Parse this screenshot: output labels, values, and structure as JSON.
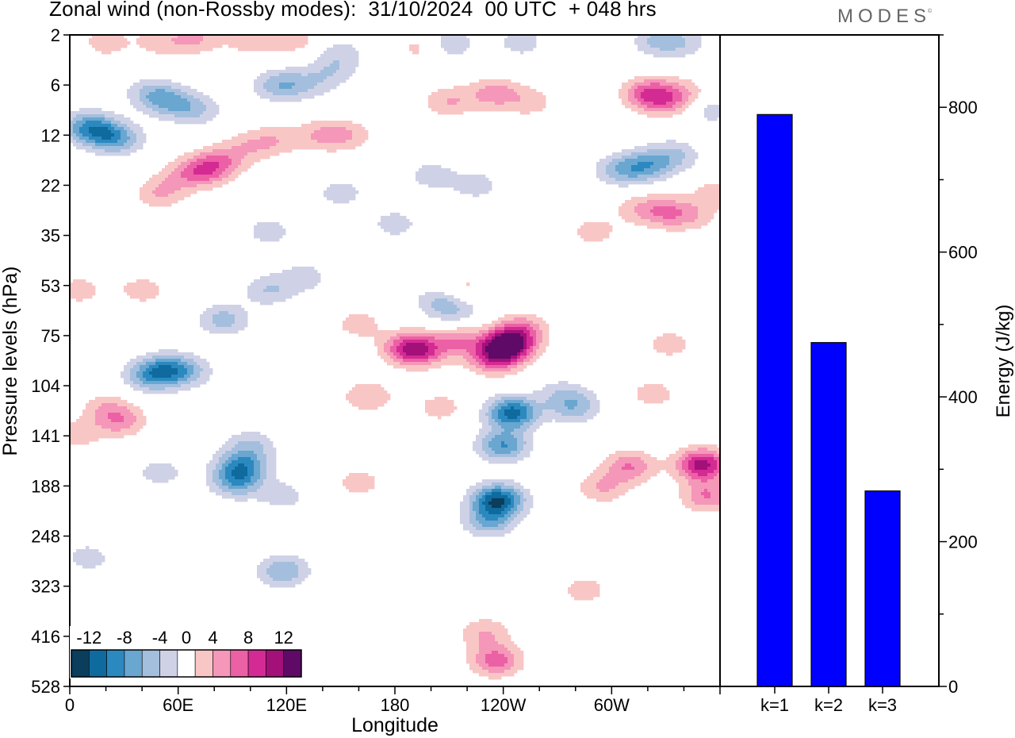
{
  "title": "Zonal wind (non-Rossby modes):  31/10/2024  00 UTC  + 048 hrs",
  "brand": "MODES",
  "brand_mark": "©",
  "colors": {
    "negative": [
      "#0b3d5c",
      "#0f6a9e",
      "#2b89c0",
      "#69a6d0",
      "#a4bfde",
      "#cfd2e6"
    ],
    "zero": "#ffffff",
    "positive": [
      "#f9c6c6",
      "#f597b8",
      "#ec60a6",
      "#d42a93",
      "#a3107a",
      "#5e0a66"
    ],
    "bar": "#0000ff"
  },
  "chart_data": [
    {
      "type": "heatmap",
      "title": "Zonal wind (non-Rossby modes):  31/10/2024  00 UTC  + 048 hrs",
      "xlabel": "Longitude",
      "ylabel": "Pressure levels (hPa)",
      "x_ticks": [
        "0",
        "60E",
        "120E",
        "180",
        "120W",
        "60W"
      ],
      "y_ticks": [
        "2",
        "6",
        "12",
        "22",
        "35",
        "53",
        "75",
        "104",
        "141",
        "188",
        "248",
        "323",
        "416",
        "528"
      ],
      "colorbar_labels": [
        "-12",
        "-8",
        "-4",
        "0",
        "4",
        "8",
        "12"
      ],
      "colorbar_levels": [
        -14,
        -12,
        -10,
        -8,
        -6,
        -4,
        -2,
        2,
        4,
        6,
        8,
        10,
        12,
        14
      ],
      "features": [
        {
          "lon": 187,
          "level": 82,
          "peak": 7
        },
        {
          "lon": 195,
          "level": 84,
          "peak": 6
        },
        {
          "lon": 215,
          "level": 78,
          "peak": 5
        },
        {
          "lon": 243,
          "level": 80,
          "peak": 13
        },
        {
          "lon": 235,
          "level": 88,
          "peak": 8
        },
        {
          "lon": 250,
          "level": 72,
          "peak": 5
        },
        {
          "lon": 245,
          "level": 124,
          "peak": -11
        },
        {
          "lon": 240,
          "level": 150,
          "peak": -8
        },
        {
          "lon": 237,
          "level": 205,
          "peak": -12
        },
        {
          "lon": 232,
          "level": 230,
          "peak": -6
        },
        {
          "lon": 236,
          "level": 470,
          "peak": 7
        },
        {
          "lon": 230,
          "level": 410,
          "peak": 4
        },
        {
          "lon": 165,
          "level": 112,
          "peak": 4
        },
        {
          "lon": 205,
          "level": 120,
          "peak": 3
        },
        {
          "lon": 160,
          "level": 185,
          "peak": 3
        },
        {
          "lon": 95,
          "level": 170,
          "peak": -8
        },
        {
          "lon": 92,
          "level": 185,
          "peak": -6
        },
        {
          "lon": 100,
          "level": 150,
          "peak": -4
        },
        {
          "lon": 118,
          "level": 300,
          "peak": -6
        },
        {
          "lon": 118,
          "level": 200,
          "peak": -3
        },
        {
          "lon": 118,
          "level": 420,
          "peak": -3
        },
        {
          "lon": 350,
          "level": 168,
          "peak": 11
        },
        {
          "lon": 353,
          "level": 200,
          "peak": 6
        },
        {
          "lon": 310,
          "level": 170,
          "peak": 6
        },
        {
          "lon": 295,
          "level": 190,
          "peak": 4
        },
        {
          "lon": 285,
          "level": 330,
          "peak": 3
        },
        {
          "lon": 45,
          "level": 98,
          "peak": -7
        },
        {
          "lon": 55,
          "level": 94,
          "peak": -5
        },
        {
          "lon": 65,
          "level": 96,
          "peak": -4
        },
        {
          "lon": 85,
          "level": 68,
          "peak": -5
        },
        {
          "lon": 110,
          "level": 55,
          "peak": -4
        },
        {
          "lon": 130,
          "level": 50,
          "peak": -3
        },
        {
          "lon": 40,
          "level": 55,
          "peak": 3
        },
        {
          "lon": 5,
          "level": 55,
          "peak": 3
        },
        {
          "lon": 20,
          "level": 120,
          "peak": 3
        },
        {
          "lon": 28,
          "level": 130,
          "peak": 5
        },
        {
          "lon": 4,
          "level": 140,
          "peak": 3
        },
        {
          "lon": 10,
          "level": 280,
          "peak": -3
        },
        {
          "lon": 50,
          "level": 175,
          "peak": -3
        },
        {
          "lon": 280,
          "level": 120,
          "peak": -5
        },
        {
          "lon": 272,
          "level": 110,
          "peak": -3
        },
        {
          "lon": 323,
          "level": 110,
          "peak": 3
        },
        {
          "lon": 332,
          "level": 80,
          "peak": 3
        },
        {
          "lon": 345,
          "level": 60,
          "peak": 2
        },
        {
          "lon": 205,
          "level": 60,
          "peak": -4
        },
        {
          "lon": 215,
          "level": 64,
          "peak": -3
        },
        {
          "lon": 160,
          "level": 70,
          "peak": 3
        },
        {
          "lon": 218,
          "level": 55,
          "peak": 3
        },
        {
          "lon": 20,
          "level": 12,
          "peak": -5
        },
        {
          "lon": 10,
          "level": 11,
          "peak": -7
        },
        {
          "lon": 28,
          "level": 13,
          "peak": -4
        },
        {
          "lon": 55,
          "level": 8,
          "peak": -5
        },
        {
          "lon": 45,
          "level": 7,
          "peak": -4
        },
        {
          "lon": 70,
          "level": 9,
          "peak": -4
        },
        {
          "lon": 115,
          "level": 6,
          "peak": -5
        },
        {
          "lon": 130,
          "level": 6,
          "peak": -3
        },
        {
          "lon": 145,
          "level": 5,
          "peak": -3
        },
        {
          "lon": 50,
          "level": 24,
          "peak": 4
        },
        {
          "lon": 63,
          "level": 20,
          "peak": 3
        },
        {
          "lon": 75,
          "level": 19,
          "peak": 6
        },
        {
          "lon": 85,
          "level": 17,
          "peak": 4
        },
        {
          "lon": 100,
          "level": 14,
          "peak": 3
        },
        {
          "lon": 140,
          "level": 12,
          "peak": 4
        },
        {
          "lon": 155,
          "level": 12,
          "peak": 3
        },
        {
          "lon": 115,
          "level": 13,
          "peak": 3
        },
        {
          "lon": 210,
          "level": 8,
          "peak": 4
        },
        {
          "lon": 235,
          "level": 7,
          "peak": 5
        },
        {
          "lon": 255,
          "level": 8,
          "peak": 3
        },
        {
          "lon": 320,
          "level": 7,
          "peak": 7
        },
        {
          "lon": 330,
          "level": 8,
          "peak": 4
        },
        {
          "lon": 340,
          "level": 7,
          "peak": 3
        },
        {
          "lon": 305,
          "level": 19,
          "peak": -5
        },
        {
          "lon": 320,
          "level": 18,
          "peak": -6
        },
        {
          "lon": 335,
          "level": 16,
          "peak": -4
        },
        {
          "lon": 355,
          "level": 9,
          "peak": -3
        },
        {
          "lon": 315,
          "level": 28,
          "peak": 3
        },
        {
          "lon": 330,
          "level": 29,
          "peak": 5
        },
        {
          "lon": 345,
          "level": 30,
          "peak": 3
        },
        {
          "lon": 290,
          "level": 34,
          "peak": 3
        },
        {
          "lon": 358,
          "level": 24,
          "peak": 3
        },
        {
          "lon": 20,
          "level": 2.6,
          "peak": 3
        },
        {
          "lon": 50,
          "level": 2.5,
          "peak": 3
        },
        {
          "lon": 70,
          "level": 2.3,
          "peak": 4
        },
        {
          "lon": 100,
          "level": 2.5,
          "peak": 3
        },
        {
          "lon": 125,
          "level": 2.4,
          "peak": 3
        },
        {
          "lon": 210,
          "level": 2.7,
          "peak": -4
        },
        {
          "lon": 250,
          "level": 2.6,
          "peak": -3
        },
        {
          "lon": 325,
          "level": 2.5,
          "peak": -4
        },
        {
          "lon": 340,
          "level": 2.6,
          "peak": -3
        },
        {
          "lon": 150,
          "level": 3.5,
          "peak": -3
        },
        {
          "lon": 195,
          "level": 3.0,
          "peak": 3
        },
        {
          "lon": 200,
          "level": 20,
          "peak": -3
        },
        {
          "lon": 225,
          "level": 22,
          "peak": -3
        },
        {
          "lon": 150,
          "level": 24,
          "peak": -3
        },
        {
          "lon": 180,
          "level": 32,
          "peak": -3
        },
        {
          "lon": 110,
          "level": 34,
          "peak": -3
        }
      ]
    },
    {
      "type": "bar",
      "categories": [
        "k=1",
        "k=2",
        "k=3"
      ],
      "values": [
        790,
        475,
        270
      ],
      "ylabel": "Energy (J/kg)",
      "y_ticks": [
        "0",
        "200",
        "400",
        "600",
        "800"
      ],
      "ylim": [
        0,
        900
      ]
    }
  ]
}
